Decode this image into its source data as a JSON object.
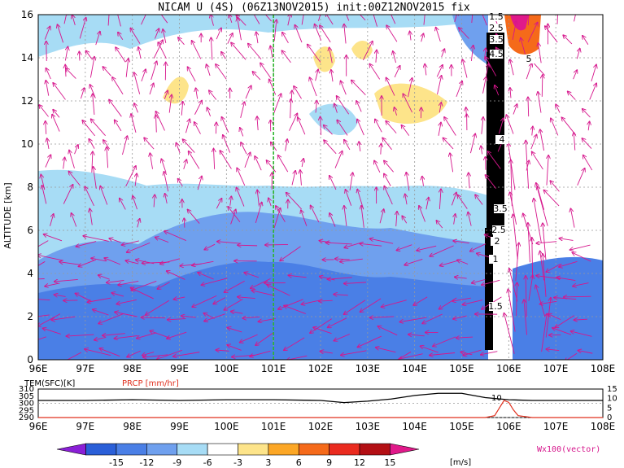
{
  "title": "NICAM U (4S) (06Z13NOV2015) init:00Z12NOV2015 fix",
  "main": {
    "ylabel": "ALTITUDE [km]",
    "ylim": [
      0,
      16
    ],
    "yticks": [
      "0",
      "2",
      "4",
      "6",
      "8",
      "10",
      "12",
      "14",
      "16"
    ],
    "xlim": [
      96,
      108
    ],
    "xticks": [
      "96E",
      "97E",
      "98E",
      "99E",
      "100E",
      "101E",
      "102E",
      "103E",
      "104E",
      "105E",
      "106E",
      "107E",
      "108E"
    ],
    "marker_lon": 101
  },
  "sub": {
    "left_label": "TEM(SFC)[K]",
    "right_label": "PRCP [mm/hr]",
    "left_ticks": [
      "310",
      "305",
      "300",
      "295",
      "290"
    ],
    "right_ticks": [
      "15",
      "10",
      "5",
      "0"
    ],
    "xticks": [
      "96E",
      "97E",
      "98E",
      "99E",
      "100E",
      "101E",
      "102E",
      "103E",
      "104E",
      "105E",
      "106E",
      "107E",
      "108E"
    ],
    "curve_label": "10"
  },
  "colorbar": {
    "ticks": [
      "-15",
      "-12",
      "-9",
      "-6",
      "-3",
      "3",
      "6",
      "9",
      "12",
      "15"
    ],
    "unit": "[m/s]",
    "note": "Wx100(vector)",
    "colors": [
      "#8a1fd6",
      "#2a5fd8",
      "#4a7fe6",
      "#6fa0ee",
      "#a7dcf5",
      "#ffffff",
      "#fde48a",
      "#fca726",
      "#f56a1a",
      "#ea2b1f",
      "#b30f14",
      "#e0198a"
    ]
  },
  "chart_data": {
    "type": "heatmap",
    "title": "NICAM U (4S) (06Z13NOV2015) init:00Z12NOV2015 fix",
    "xlabel": "",
    "ylabel": "ALTITUDE [km]",
    "xlim": [
      96,
      108
    ],
    "ylim": [
      0,
      16
    ],
    "colorbar_levels": [
      -15,
      -12,
      -9,
      -6,
      -3,
      3,
      6,
      9,
      12,
      15
    ],
    "colorbar_unit": "[m/s]",
    "vector_scale": "Wx100(vector)",
    "contour_labels": [
      "1.5",
      "2.5",
      "3.5",
      "4.5",
      "5",
      "4",
      "3.5",
      "2.5",
      "2",
      "1",
      "1.5"
    ],
    "surface_temperature": {
      "label": "TEM(SFC)[K]",
      "x": [
        96,
        97,
        98,
        99,
        100,
        101,
        102,
        102.5,
        103,
        103.5,
        104,
        104.5,
        105,
        105.5,
        106,
        106.5,
        107,
        108
      ],
      "y": [
        302,
        302,
        302.5,
        302,
        302.5,
        302.5,
        302,
        300.5,
        301.5,
        303,
        305.5,
        307,
        307,
        304,
        302.5,
        302,
        302,
        302
      ]
    },
    "precipitation": {
      "label": "PRCP [mm/hr]",
      "x": [
        105.5,
        105.7,
        105.8,
        105.9,
        106,
        106.1,
        106.2,
        106.5,
        108
      ],
      "y": [
        0,
        1,
        5,
        9,
        8,
        4,
        1,
        0,
        0
      ]
    }
  }
}
